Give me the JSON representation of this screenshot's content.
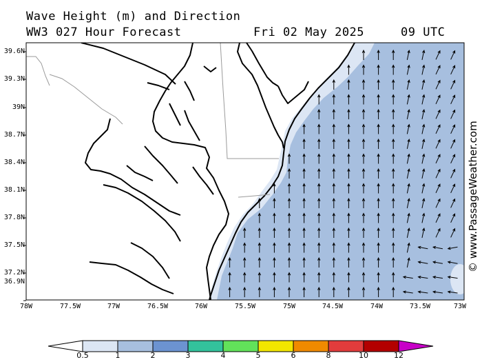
{
  "header": {
    "line1": "Wave Height (m) and Direction",
    "line2_left": "WW3 027 Hour Forecast",
    "line2_date": "Fri 02 May 2025",
    "line2_time": "09 UTC"
  },
  "credit": "© www.PassageWeather.com",
  "lat_labels": [
    "39.6N",
    "39.3N",
    "39N",
    "38.7N",
    "38.4N",
    "38.1N",
    "37.8N",
    "37.5N",
    "37.2N",
    "36.9N"
  ],
  "lon_labels": [
    "78W",
    "77.5W",
    "77W",
    "76.5W",
    "76W",
    "75.5W",
    "75W",
    "74.5W",
    "74W",
    "73.5W",
    "73W"
  ],
  "colorbar": {
    "labels": [
      "0.5",
      "1",
      "2",
      "3",
      "4",
      "5",
      "6",
      "8",
      "10",
      "12"
    ],
    "colors": [
      "#ffffff",
      "#dce6f4",
      "#a7bfdf",
      "#6c93d1",
      "#33c29c",
      "#62e25a",
      "#f2e600",
      "#f08a00",
      "#e23c3c",
      "#b30000",
      "#c800c8"
    ]
  },
  "map": {
    "sea_color": "#a7bfdf",
    "nearshore_color": "#dce6f4",
    "wave_direction": "north, turning northeast far offshore; westward arrows near 73W-73.5W south of 37.5N"
  }
}
